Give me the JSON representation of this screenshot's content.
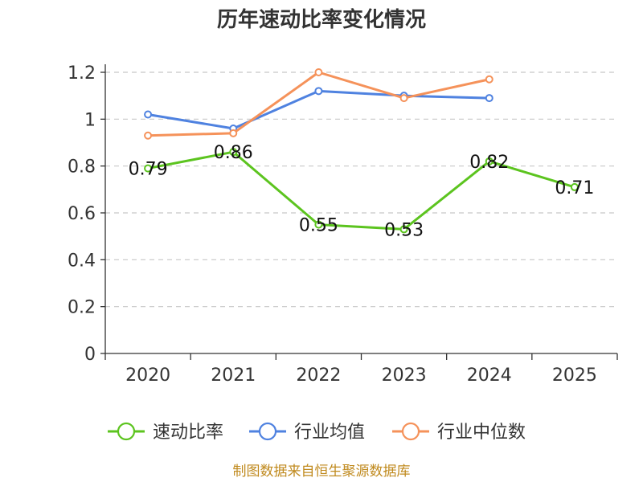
{
  "chart_data": {
    "type": "line",
    "title": "历年速动比率变化情况",
    "categories": [
      "2020",
      "2021",
      "2022",
      "2023",
      "2024",
      "2025"
    ],
    "ylim": [
      0,
      1.2
    ],
    "yticks": [
      "0",
      "0.2",
      "0.4",
      "0.6",
      "0.8",
      "1",
      "1.2"
    ],
    "ytick_values": [
      0,
      0.2,
      0.4,
      0.6,
      0.8,
      1.0,
      1.2
    ],
    "series": [
      {
        "name": "速动比率",
        "color": "#5cc41f",
        "values": [
          0.79,
          0.86,
          0.55,
          0.53,
          0.82,
          0.71
        ],
        "labels": [
          "0.79",
          "0.86",
          "0.55",
          "0.53",
          "0.82",
          "0.71"
        ]
      },
      {
        "name": "行业均值",
        "color": "#4f82e0",
        "values": [
          1.02,
          0.96,
          1.12,
          1.1,
          1.09,
          null
        ]
      },
      {
        "name": "行业中位数",
        "color": "#f5925a",
        "values": [
          0.93,
          0.94,
          1.2,
          1.09,
          1.17,
          null
        ]
      }
    ],
    "grid": true,
    "legend": "bottom"
  },
  "footer": {
    "source": "制图数据来自恒生聚源数据库"
  }
}
